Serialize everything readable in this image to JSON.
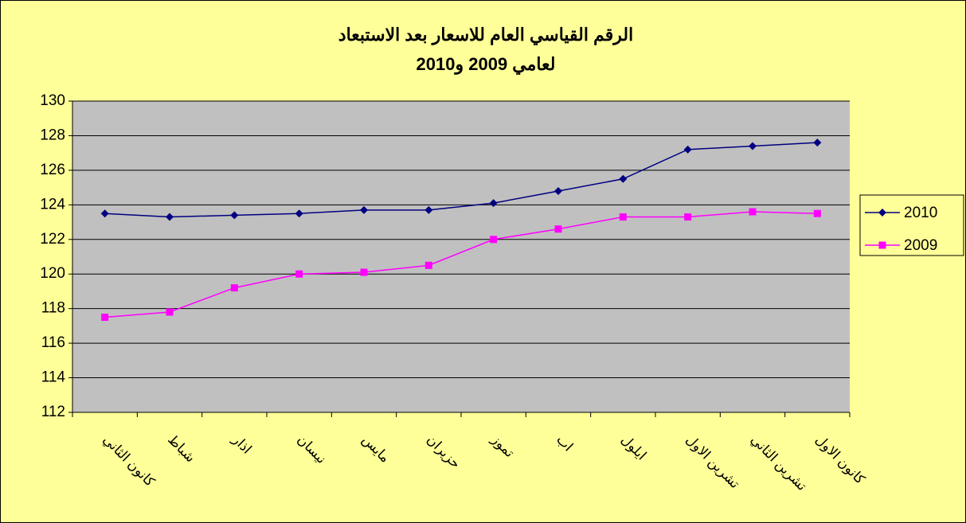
{
  "chart_data": {
    "type": "line",
    "title": [
      "الرقم القياسي العام للاسعار بعد الاستبعاد",
      "لعامي 2009 و2010"
    ],
    "categories": [
      "كانون الثاني",
      "شباط",
      "اذار",
      "نيسان",
      "مايس",
      "حزيران",
      "تموز",
      "اب",
      "ايلول",
      "تشرين الاول",
      "تشرين الثاني",
      "كانون الاول"
    ],
    "series": [
      {
        "name": "2010",
        "color": "#000080",
        "marker": "diamond",
        "values": [
          123.5,
          123.3,
          123.4,
          123.5,
          123.7,
          123.7,
          124.1,
          124.8,
          125.5,
          127.2,
          127.4,
          127.6
        ]
      },
      {
        "name": "2009",
        "color": "#FF00FF",
        "marker": "square",
        "values": [
          117.5,
          117.8,
          119.2,
          120.0,
          120.1,
          120.5,
          122.0,
          122.6,
          123.3,
          123.3,
          123.6,
          123.5
        ]
      }
    ],
    "ylim": [
      112,
      130
    ],
    "yticks": [
      112,
      114,
      116,
      118,
      120,
      122,
      124,
      126,
      128,
      130
    ],
    "grid": true,
    "legend": "right"
  }
}
